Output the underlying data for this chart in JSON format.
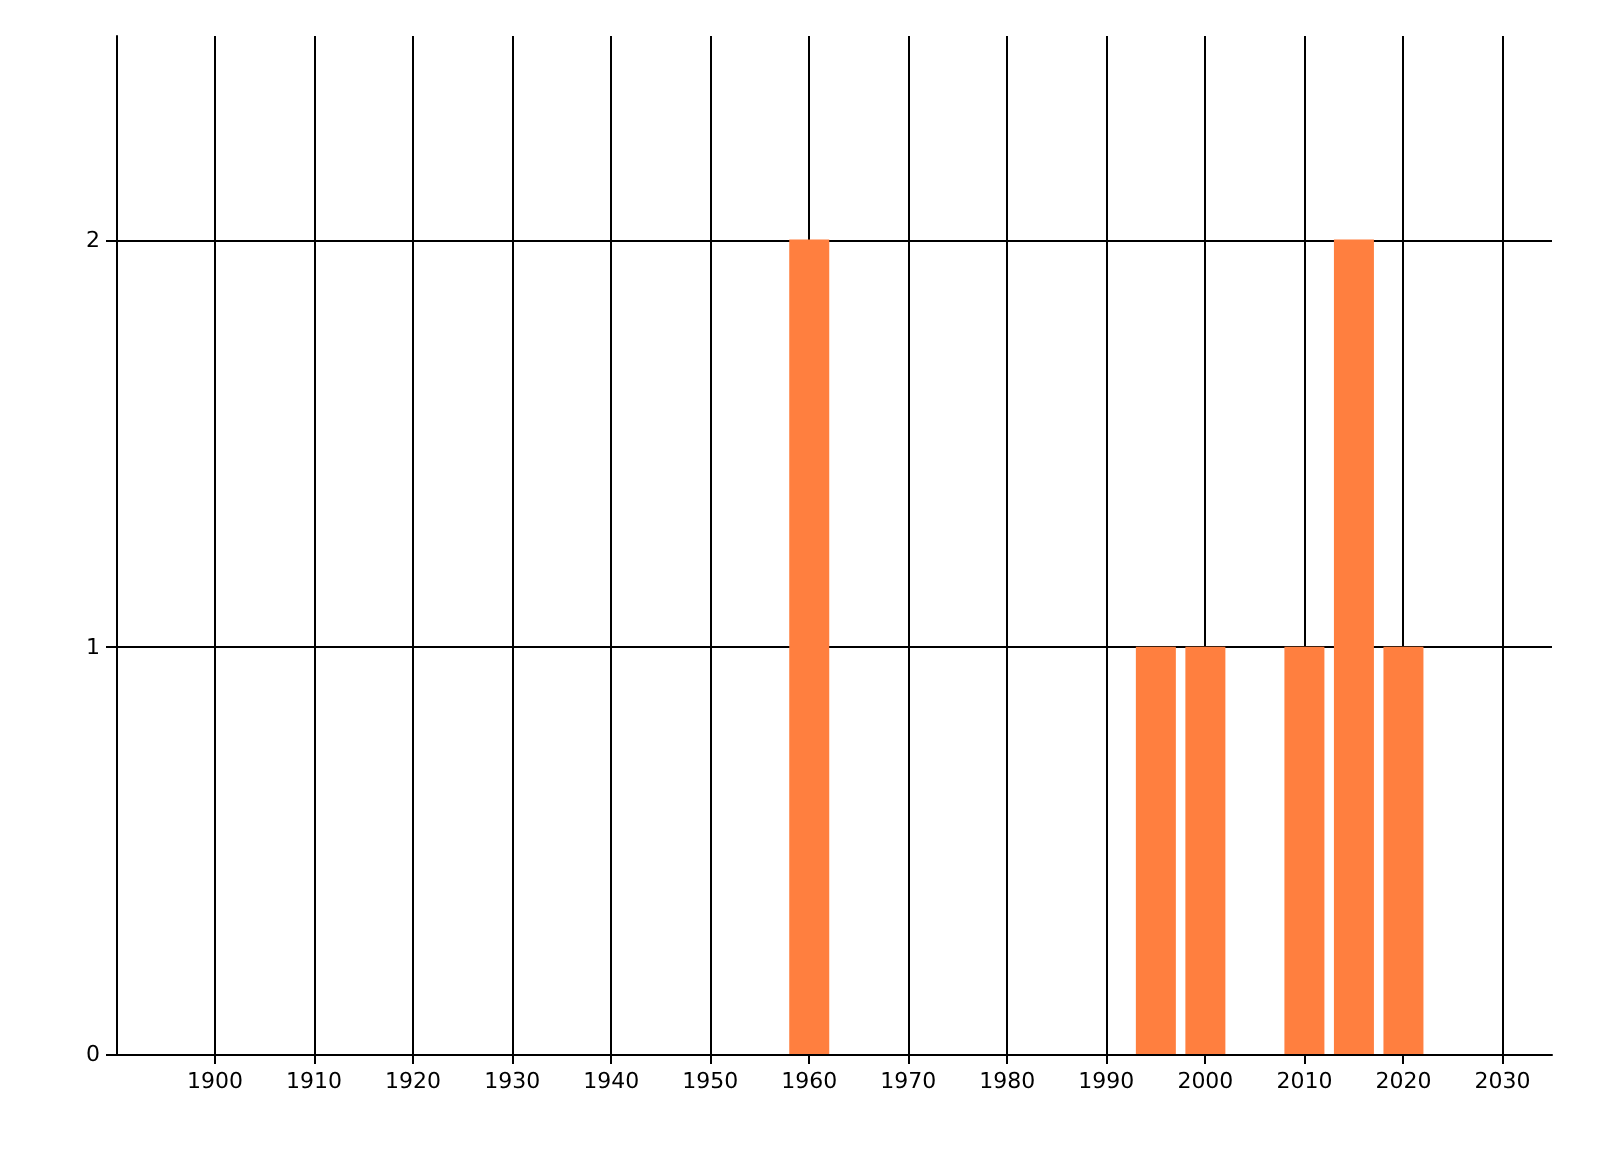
{
  "chart_data": {
    "type": "bar",
    "x": [
      1960,
      1995,
      2000,
      2010,
      2015,
      2020
    ],
    "values": [
      2,
      1,
      1,
      1,
      2,
      1
    ],
    "color": "#ff7f3f",
    "xlim": [
      1890,
      2035
    ],
    "xticks": [
      1900,
      1910,
      1920,
      1930,
      1940,
      1950,
      1960,
      1970,
      1980,
      1990,
      2000,
      2010,
      2020,
      2030
    ],
    "ylim": [
      0,
      2.5
    ],
    "yticks": [
      0,
      1,
      2
    ],
    "grid": true
  }
}
